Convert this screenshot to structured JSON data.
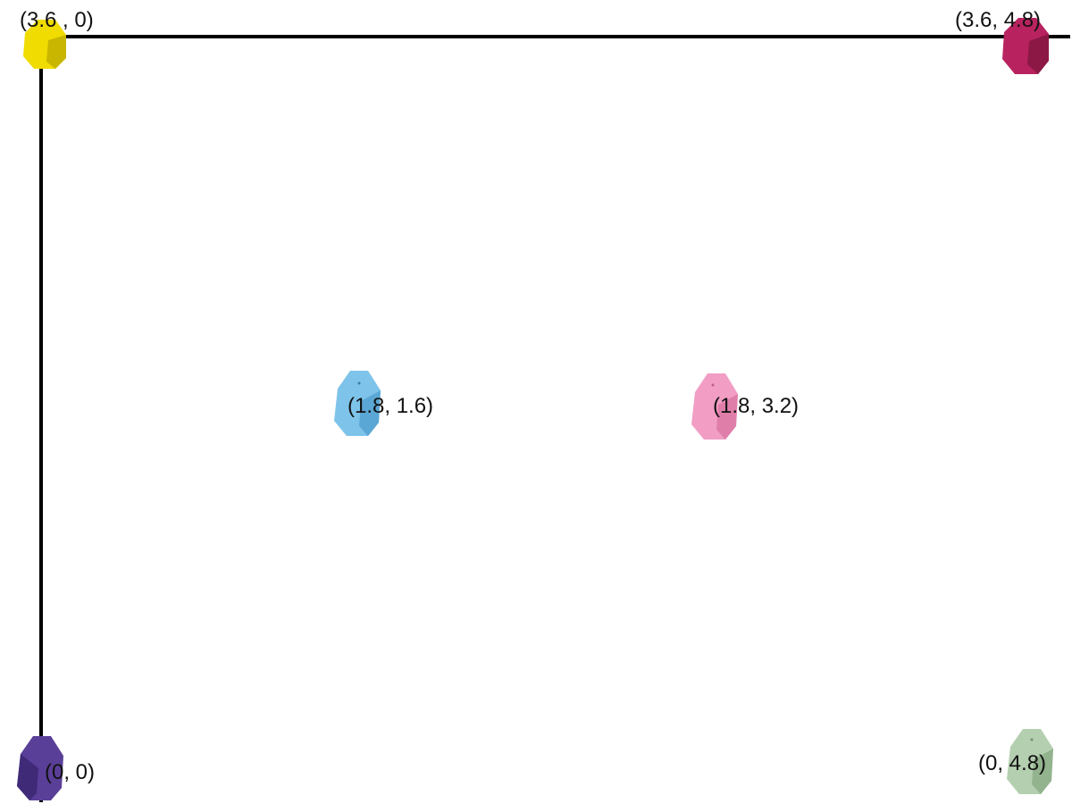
{
  "beacons": [
    {
      "id": "yellow",
      "label": "(3.6 , 0)",
      "color": "#f0dc00",
      "shade": "#c8b600"
    },
    {
      "id": "magenta",
      "label": "(3.6, 4.8)",
      "color": "#b8235f",
      "shade": "#8c1846"
    },
    {
      "id": "blue",
      "label": "(1.8, 1.6)",
      "color": "#7ec3ea",
      "shade": "#5aa6d4"
    },
    {
      "id": "pink",
      "label": "(1.8, 3.2)",
      "color": "#f29ec4",
      "shade": "#e07eaa"
    },
    {
      "id": "purple",
      "label": "(0, 0)",
      "color": "#5a3f98",
      "shade": "#3f2a78"
    },
    {
      "id": "green",
      "label": "(0, 4.8)",
      "color": "#b4cfb0",
      "shade": "#93b38e"
    }
  ]
}
